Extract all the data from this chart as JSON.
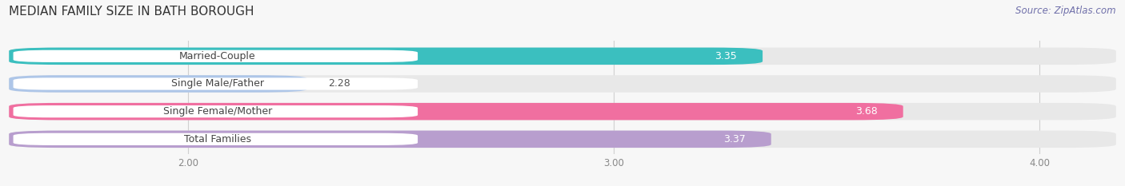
{
  "title": "MEDIAN FAMILY SIZE IN BATH BOROUGH",
  "source": "Source: ZipAtlas.com",
  "categories": [
    "Married-Couple",
    "Single Male/Father",
    "Single Female/Mother",
    "Total Families"
  ],
  "values": [
    3.35,
    2.28,
    3.68,
    3.37
  ],
  "colors": [
    "#3bbfbf",
    "#aec6e8",
    "#f06fa0",
    "#b89ece"
  ],
  "bar_bg_color": "#e8e8e8",
  "xlim_min": 1.58,
  "xlim_max": 4.18,
  "xticks": [
    2.0,
    3.0,
    4.0
  ],
  "xtick_labels": [
    "2.00",
    "3.00",
    "4.00"
  ],
  "bar_height": 0.62,
  "label_fontsize": 9.0,
  "value_fontsize": 9.0,
  "title_fontsize": 11,
  "source_fontsize": 8.5,
  "background_color": "#f7f7f7",
  "text_color_inside": "#ffffff",
  "text_color_outside": "#555555",
  "label_color": "#444444",
  "label_bg_color": "#ffffff",
  "grid_color": "#d0d0d0",
  "title_color": "#333333",
  "source_color": "#7070aa"
}
